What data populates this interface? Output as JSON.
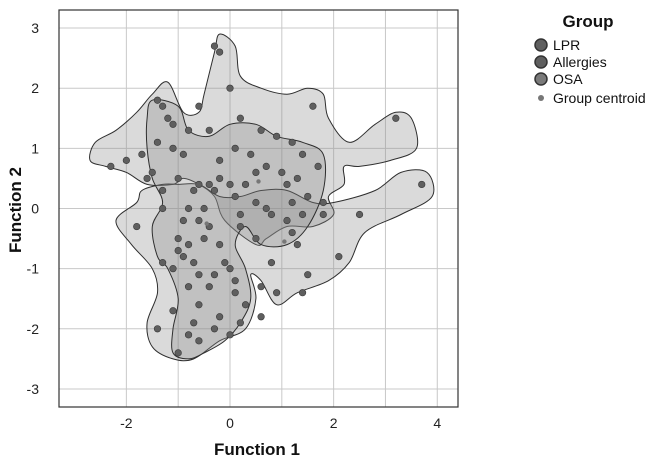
{
  "chart_data": {
    "type": "scatter",
    "xlabel": "Function 1",
    "ylabel": "Function 2",
    "xlim": [
      -3.3,
      4.4
    ],
    "ylim": [
      -3.3,
      3.3
    ],
    "xticks": [
      -2,
      0,
      2,
      4
    ],
    "yticks": [
      -3,
      -2,
      -1,
      0,
      1,
      2,
      3
    ],
    "grid": true,
    "legend": {
      "title": "Group",
      "placement": "top-right",
      "entries": [
        "LPR",
        "Allergies",
        "OSA",
        "Group centroid"
      ]
    },
    "colors": {
      "point": "#5f5f5f",
      "point_stroke": "#3a3a3a",
      "centroid": "#777777",
      "region_fill": "#8c8c8c",
      "region_stroke": "#2e2e2e",
      "grid": "#c8c8c8",
      "frame": "#333333"
    },
    "regions": [
      {
        "name": "LPR",
        "outline": [
          [
            -2.6,
            1.1
          ],
          [
            -2.2,
            1.3
          ],
          [
            -1.8,
            1.6
          ],
          [
            -1.5,
            1.9
          ],
          [
            -1.2,
            2.1
          ],
          [
            -0.9,
            1.6
          ],
          [
            -0.6,
            1.6
          ],
          [
            -0.5,
            1.9
          ],
          [
            -0.3,
            2.6
          ],
          [
            -0.2,
            2.9
          ],
          [
            0.1,
            2.7
          ],
          [
            0.2,
            2.2
          ],
          [
            0.6,
            2.0
          ],
          [
            1.1,
            1.9
          ],
          [
            1.5,
            2.0
          ],
          [
            1.8,
            1.9
          ],
          [
            1.9,
            1.5
          ],
          [
            2.3,
            1.1
          ],
          [
            2.8,
            1.4
          ],
          [
            3.2,
            1.6
          ],
          [
            3.5,
            1.5
          ],
          [
            3.6,
            1.0
          ],
          [
            3.1,
            0.8
          ],
          [
            2.5,
            0.7
          ],
          [
            2.2,
            0.7
          ],
          [
            2.2,
            0.4
          ],
          [
            1.9,
            0.2
          ],
          [
            2.0,
            -0.1
          ],
          [
            1.6,
            -0.3
          ],
          [
            1.1,
            -0.3
          ],
          [
            0.7,
            -0.5
          ],
          [
            0.5,
            -0.6
          ],
          [
            -0.1,
            -0.2
          ],
          [
            -0.3,
            0.2
          ],
          [
            -0.6,
            0.4
          ],
          [
            -0.9,
            0.5
          ],
          [
            -1.1,
            0.4
          ],
          [
            -1.6,
            0.4
          ],
          [
            -2.0,
            0.6
          ],
          [
            -2.4,
            0.7
          ],
          [
            -2.7,
            0.8
          ]
        ]
      },
      {
        "name": "Allergies",
        "outline": [
          [
            -1.7,
            0.3
          ],
          [
            -1.8,
            0.1
          ],
          [
            -2.2,
            -0.2
          ],
          [
            -1.9,
            -0.6
          ],
          [
            -1.5,
            -1.0
          ],
          [
            -1.4,
            -1.4
          ],
          [
            -1.6,
            -1.9
          ],
          [
            -1.5,
            -2.3
          ],
          [
            -1.1,
            -2.5
          ],
          [
            -0.7,
            -2.5
          ],
          [
            -0.2,
            -2.2
          ],
          [
            0.3,
            -2.0
          ],
          [
            0.5,
            -1.5
          ],
          [
            0.4,
            -1.1
          ],
          [
            0.6,
            -1.2
          ],
          [
            0.9,
            -1.6
          ],
          [
            1.3,
            -1.4
          ],
          [
            1.9,
            -1.2
          ],
          [
            2.3,
            -0.9
          ],
          [
            2.6,
            -0.4
          ],
          [
            3.3,
            -0.1
          ],
          [
            3.9,
            0.2
          ],
          [
            3.8,
            0.6
          ],
          [
            3.3,
            0.6
          ],
          [
            2.8,
            0.3
          ],
          [
            2.0,
            0.1
          ],
          [
            1.6,
            0.1
          ],
          [
            1.1,
            0.3
          ],
          [
            0.6,
            0.3
          ],
          [
            0.2,
            0.2
          ],
          [
            -0.2,
            0.2
          ],
          [
            -0.6,
            0.4
          ],
          [
            -1.0,
            0.4
          ],
          [
            -1.3,
            0.4
          ]
        ]
      },
      {
        "name": "OSA",
        "outline": [
          [
            -1.5,
            1.8
          ],
          [
            -1.0,
            1.7
          ],
          [
            -0.8,
            1.3
          ],
          [
            -0.4,
            1.2
          ],
          [
            0.0,
            1.4
          ],
          [
            0.5,
            1.4
          ],
          [
            0.9,
            1.2
          ],
          [
            1.4,
            1.1
          ],
          [
            1.8,
            0.9
          ],
          [
            1.8,
            0.3
          ],
          [
            1.5,
            -0.3
          ],
          [
            1.1,
            -0.6
          ],
          [
            0.6,
            -0.6
          ],
          [
            0.3,
            -0.3
          ],
          [
            0.1,
            -0.6
          ],
          [
            0.3,
            -1.0
          ],
          [
            0.4,
            -1.5
          ],
          [
            0.2,
            -1.9
          ],
          [
            -0.1,
            -2.2
          ],
          [
            -0.5,
            -2.4
          ],
          [
            -0.8,
            -2.5
          ],
          [
            -1.1,
            -2.4
          ],
          [
            -1.1,
            -2.0
          ],
          [
            -1.0,
            -1.5
          ],
          [
            -1.2,
            -1.0
          ],
          [
            -1.4,
            -0.8
          ],
          [
            -1.5,
            -0.3
          ],
          [
            -1.3,
            0.1
          ],
          [
            -1.5,
            0.5
          ],
          [
            -1.6,
            1.0
          ],
          [
            -1.6,
            1.5
          ]
        ]
      }
    ],
    "points": [
      [
        -0.3,
        2.7
      ],
      [
        -0.2,
        2.6
      ],
      [
        0.0,
        2.0
      ],
      [
        -0.6,
        1.7
      ],
      [
        1.6,
        1.7
      ],
      [
        3.2,
        1.5
      ],
      [
        -1.4,
        1.8
      ],
      [
        -1.3,
        1.7
      ],
      [
        -1.2,
        1.5
      ],
      [
        -1.1,
        1.4
      ],
      [
        -0.8,
        1.3
      ],
      [
        -0.4,
        1.3
      ],
      [
        0.2,
        1.5
      ],
      [
        0.6,
        1.3
      ],
      [
        0.9,
        1.2
      ],
      [
        1.2,
        1.1
      ],
      [
        -1.4,
        1.1
      ],
      [
        -1.1,
        1.0
      ],
      [
        -1.7,
        0.9
      ],
      [
        -2.0,
        0.8
      ],
      [
        -0.9,
        0.9
      ],
      [
        -0.2,
        0.8
      ],
      [
        0.1,
        1.0
      ],
      [
        0.4,
        0.9
      ],
      [
        1.4,
        0.9
      ],
      [
        1.7,
        0.7
      ],
      [
        -2.3,
        0.7
      ],
      [
        -1.5,
        0.6
      ],
      [
        -1.0,
        0.5
      ],
      [
        -0.2,
        0.5
      ],
      [
        0.5,
        0.6
      ],
      [
        0.7,
        0.7
      ],
      [
        1.0,
        0.6
      ],
      [
        -1.6,
        0.5
      ],
      [
        -0.6,
        0.4
      ],
      [
        -0.4,
        0.4
      ],
      [
        0.0,
        0.4
      ],
      [
        0.3,
        0.4
      ],
      [
        1.1,
        0.4
      ],
      [
        1.3,
        0.5
      ],
      [
        3.7,
        0.4
      ],
      [
        -1.3,
        0.3
      ],
      [
        -0.7,
        0.3
      ],
      [
        -0.3,
        0.3
      ],
      [
        0.1,
        0.2
      ],
      [
        0.5,
        0.1
      ],
      [
        0.7,
        0.0
      ],
      [
        1.2,
        0.1
      ],
      [
        1.5,
        0.2
      ],
      [
        1.8,
        0.1
      ],
      [
        -1.3,
        0.0
      ],
      [
        -0.8,
        0.0
      ],
      [
        -0.5,
        0.0
      ],
      [
        0.2,
        -0.1
      ],
      [
        0.8,
        -0.1
      ],
      [
        1.1,
        -0.2
      ],
      [
        1.4,
        -0.1
      ],
      [
        1.8,
        -0.1
      ],
      [
        2.5,
        -0.1
      ],
      [
        -1.8,
        -0.3
      ],
      [
        -0.9,
        -0.2
      ],
      [
        -0.6,
        -0.2
      ],
      [
        -0.4,
        -0.3
      ],
      [
        0.2,
        -0.3
      ],
      [
        1.2,
        -0.4
      ],
      [
        -1.0,
        -0.5
      ],
      [
        -0.8,
        -0.6
      ],
      [
        -0.5,
        -0.5
      ],
      [
        -0.2,
        -0.6
      ],
      [
        0.5,
        -0.5
      ],
      [
        1.3,
        -0.6
      ],
      [
        -1.0,
        -0.7
      ],
      [
        -0.9,
        -0.8
      ],
      [
        -0.7,
        -0.9
      ],
      [
        -0.1,
        -0.9
      ],
      [
        0.0,
        -1.0
      ],
      [
        0.8,
        -0.9
      ],
      [
        2.1,
        -0.8
      ],
      [
        -1.3,
        -0.9
      ],
      [
        -1.1,
        -1.0
      ],
      [
        -0.6,
        -1.1
      ],
      [
        -0.3,
        -1.1
      ],
      [
        0.1,
        -1.2
      ],
      [
        0.6,
        -1.3
      ],
      [
        1.5,
        -1.1
      ],
      [
        -0.8,
        -1.3
      ],
      [
        -0.4,
        -1.3
      ],
      [
        0.1,
        -1.4
      ],
      [
        0.3,
        -1.6
      ],
      [
        0.9,
        -1.4
      ],
      [
        1.4,
        -1.4
      ],
      [
        -1.1,
        -1.7
      ],
      [
        -0.6,
        -1.6
      ],
      [
        -0.2,
        -1.8
      ],
      [
        0.2,
        -1.9
      ],
      [
        0.6,
        -1.8
      ],
      [
        -1.4,
        -2.0
      ],
      [
        -0.7,
        -1.9
      ],
      [
        -0.3,
        -2.0
      ],
      [
        0.0,
        -2.1
      ],
      [
        -0.8,
        -2.1
      ],
      [
        -0.6,
        -2.2
      ],
      [
        -1.0,
        -2.4
      ]
    ],
    "centroids": [
      [
        0.55,
        0.45
      ],
      [
        1.05,
        -0.55
      ],
      [
        -0.45,
        -0.25
      ]
    ]
  }
}
